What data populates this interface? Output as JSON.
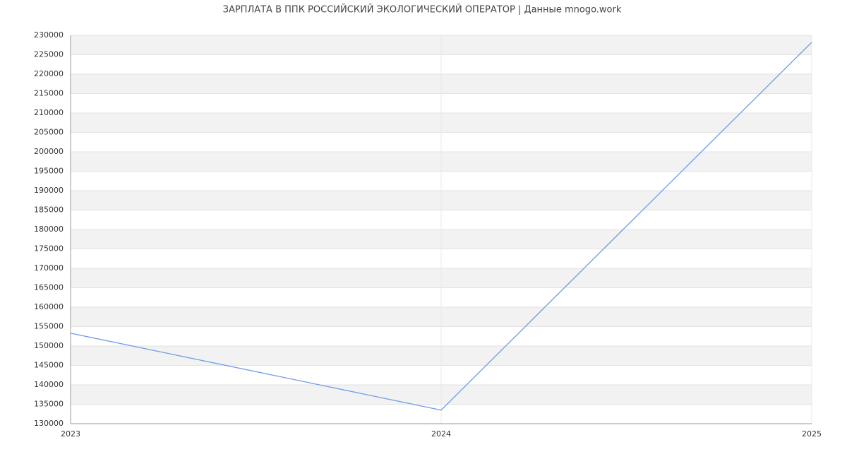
{
  "chart_data": {
    "type": "line",
    "title": "ЗАРПЛАТА В ППК РОССИЙСКИЙ ЭКОЛОГИЧЕСКИЙ ОПЕРАТОР | Данные mnogo.work",
    "x": [
      2023,
      2024,
      2025
    ],
    "series": [
      {
        "color": "#6f9ce8",
        "values": [
          153300,
          133500,
          228200
        ]
      }
    ],
    "xlim": [
      2023,
      2025
    ],
    "xticks": [
      2023,
      2024,
      2025
    ],
    "ylim": [
      130000,
      230000
    ],
    "yticks": [
      130000,
      135000,
      140000,
      145000,
      150000,
      155000,
      160000,
      165000,
      170000,
      175000,
      180000,
      185000,
      190000,
      195000,
      200000,
      205000,
      210000,
      215000,
      220000,
      225000,
      230000
    ],
    "grid": true
  }
}
